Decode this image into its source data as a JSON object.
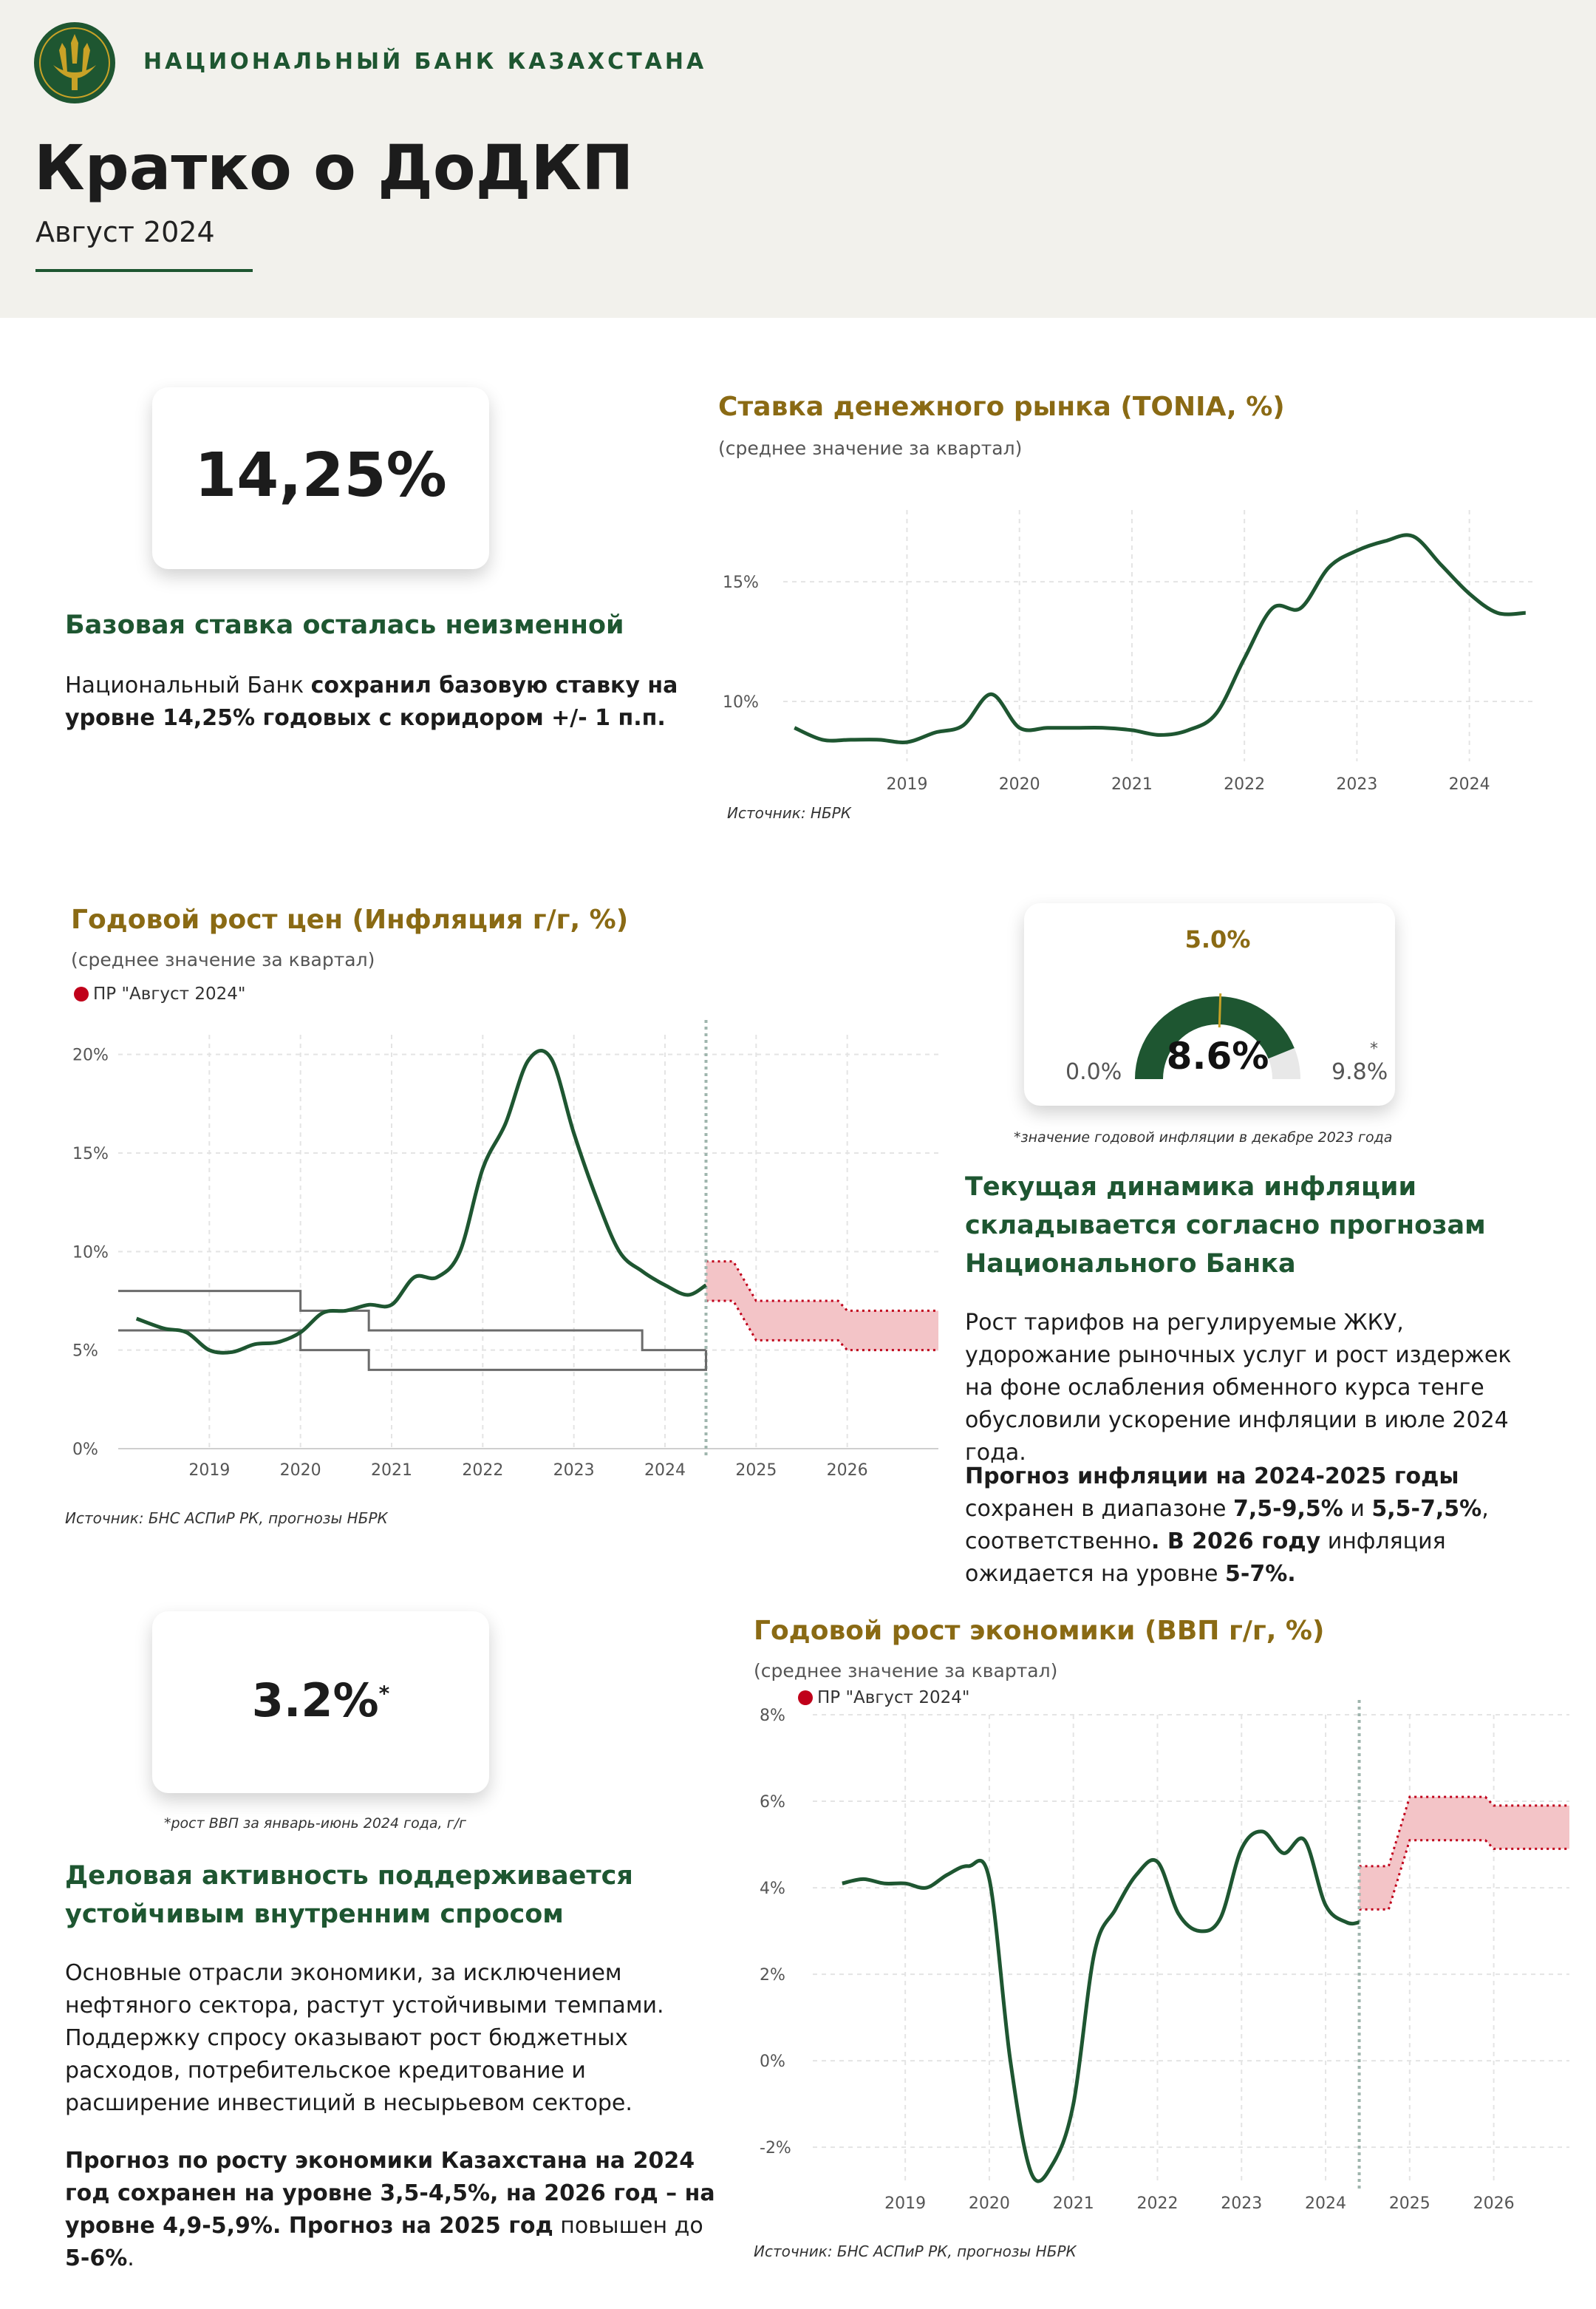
{
  "header": {
    "bank_name": "НАЦИОНАЛЬНЫЙ БАНК КАЗАХСТАНА",
    "title": "Кратко о ДоДКП",
    "subtitle": "Август 2024"
  },
  "rate_block": {
    "value": "14,25%",
    "heading": "Базовая ставка осталась неизменной",
    "text_1": "Национальный Банк ",
    "text_2": "сохранил базовую ставку на уровне 14,25% годовых с коридором +/- 1 п.п."
  },
  "inflation_block": {
    "gauge_target": "5.0%",
    "gauge_value": "8.6%",
    "gauge_min": "0.0%",
    "gauge_max": "9.8%",
    "gauge_star": "*",
    "gauge_note": "*значение годовой инфляции в декабре 2023 года",
    "heading": "Текущая динамика инфляции складывается согласно прогнозам Национального Банка",
    "para1": "Рост тарифов на регулируемые ЖКУ, удорожание рыночных услуг и рост издержек на фоне ослабления обменного курса тенге обусловили ускорение инфляции в июле 2024 года.",
    "para2_a": "Прогноз инфляции на 2024-2025 годы",
    "para2_b": " сохранен в диапазоне ",
    "para2_c": "7,5-9,5%",
    "para2_d": " и ",
    "para2_e": "5,5-7,5%",
    "para2_f": ", соответственно",
    "para2_g": ". В ",
    "para2_h": "2026 году",
    "para2_i": " инфляция ожидается на уровне ",
    "para2_j": "5-7%."
  },
  "gdp_block": {
    "value": "3.2%",
    "star": "*",
    "note": "*рост ВВП за январь-июнь 2024 года, г/г",
    "heading": "Деловая активность поддерживается устойчивым внутренним спросом",
    "para1": "Основные отрасли экономики, за исключением нефтяного сектора, растут устойчивыми темпами. Поддержку спросу оказывают рост бюджетных расходов, потребительское кредитование и расширение инвестиций в несырьевом секторе.",
    "para2_a": "Прогноз по росту экономики Казахстана на 2024 год сохранен на уровне 3,5-4,5%, на 2026 год – на уровне 4,9-5,9%. Прогноз на 2025 год",
    "para2_b": " повышен до ",
    "para2_c": "5-6%",
    "para2_d": "."
  },
  "colors": {
    "green": "#1e5631",
    "gold": "#8a6a14",
    "band": "#f3c4c7",
    "band_edge": "#c0001a"
  },
  "chart_data": [
    {
      "type": "line",
      "title": "Ставка денежного рынка (TONIA, %)",
      "subtitle": "(среднее значение за квартал)",
      "source": "Источник: НБРК",
      "x_ticks": [
        "2019",
        "2020",
        "2021",
        "2022",
        "2023",
        "2024"
      ],
      "y_ticks": [
        "10%",
        "15%"
      ],
      "ylim": [
        7.5,
        18
      ],
      "grid": true,
      "series": [
        {
          "x": [
            2018.0,
            2018.25,
            2018.5,
            2018.75,
            2019.0,
            2019.25,
            2019.5,
            2019.75,
            2020.0,
            2020.25,
            2020.5,
            2020.75,
            2021.0,
            2021.25,
            2021.5,
            2021.75,
            2022.0,
            2022.25,
            2022.5,
            2022.75,
            2023.0,
            2023.25,
            2023.5,
            2023.75,
            2024.0,
            2024.25,
            2024.5
          ],
          "y": [
            8.9,
            8.4,
            8.4,
            8.4,
            8.3,
            8.7,
            9.0,
            10.3,
            8.9,
            8.9,
            8.9,
            8.9,
            8.8,
            8.6,
            8.8,
            9.5,
            11.8,
            13.9,
            13.9,
            15.6,
            16.3,
            16.7,
            16.9,
            15.7,
            14.5,
            13.7,
            13.7
          ]
        }
      ]
    },
    {
      "type": "line",
      "title": "Годовой рост цен (Инфляция г/г, %)",
      "subtitle": "(среднее значение за квартал)",
      "legend": "ПР \"Август 2024\"",
      "source": "Источник: БНС АСПиР РК, прогнозы НБРК",
      "x_ticks": [
        "2019",
        "2020",
        "2021",
        "2022",
        "2023",
        "2024",
        "2025",
        "2026"
      ],
      "y_ticks": [
        "0%",
        "5%",
        "10%",
        "15%",
        "20%"
      ],
      "ylim": [
        0,
        21
      ],
      "grid": true,
      "series": [
        {
          "x": [
            2018.2,
            2018.5,
            2018.75,
            2019.0,
            2019.25,
            2019.5,
            2019.75,
            2020.0,
            2020.25,
            2020.5,
            2020.75,
            2021.0,
            2021.25,
            2021.5,
            2021.75,
            2022.0,
            2022.25,
            2022.5,
            2022.75,
            2023.0,
            2023.25,
            2023.5,
            2023.75,
            2024.0,
            2024.25,
            2024.45
          ],
          "y": [
            6.6,
            6.1,
            5.9,
            5.0,
            4.9,
            5.3,
            5.4,
            5.9,
            6.9,
            7.0,
            7.3,
            7.3,
            8.7,
            8.7,
            10.0,
            14.2,
            16.5,
            19.7,
            19.8,
            16.0,
            12.7,
            10.0,
            9.0,
            8.3,
            7.8,
            8.3
          ]
        }
      ],
      "target_corridor": {
        "x": [
          2018.0,
          2020.0,
          2020.75,
          2023.75,
          2024.45
        ],
        "upper": [
          8,
          7,
          6,
          5,
          5
        ],
        "lower": [
          6,
          5,
          4,
          4,
          5
        ]
      },
      "forecast_band": {
        "x": [
          2024.45,
          2024.75,
          2025.0,
          2025.9,
          2026.0,
          2027.0
        ],
        "upper": [
          9.5,
          9.5,
          7.5,
          7.5,
          7.0,
          7.0
        ],
        "lower": [
          7.5,
          7.5,
          5.5,
          5.5,
          5.0,
          5.0
        ]
      }
    },
    {
      "type": "line",
      "title": "Годовой рост экономики (ВВП г/г, %)",
      "subtitle": "(среднее значение за квартал)",
      "legend": "ПР \"Август 2024\"",
      "source": "Источник: БНС АСПиР РК, прогнозы НБРК",
      "x_ticks": [
        "2019",
        "2020",
        "2021",
        "2022",
        "2023",
        "2024",
        "2025",
        "2026"
      ],
      "y_ticks": [
        "-2%",
        "0%",
        "2%",
        "4%",
        "6%",
        "8%"
      ],
      "ylim": [
        -2.8,
        8
      ],
      "grid": true,
      "series": [
        {
          "x": [
            2018.25,
            2018.5,
            2018.75,
            2019.0,
            2019.25,
            2019.5,
            2019.75,
            2020.0,
            2020.25,
            2020.5,
            2020.75,
            2021.0,
            2021.25,
            2021.5,
            2021.75,
            2022.0,
            2022.25,
            2022.5,
            2022.75,
            2023.0,
            2023.25,
            2023.5,
            2023.75,
            2024.0,
            2024.25,
            2024.4
          ],
          "y": [
            4.1,
            4.2,
            4.1,
            4.1,
            4.0,
            4.3,
            4.5,
            4.2,
            0.0,
            -2.6,
            -2.4,
            -1.0,
            2.5,
            3.5,
            4.3,
            4.6,
            3.4,
            3.0,
            3.3,
            4.9,
            5.3,
            4.8,
            5.1,
            3.6,
            3.2,
            3.2
          ]
        }
      ],
      "forecast_band": {
        "x": [
          2024.4,
          2024.75,
          2025.0,
          2025.9,
          2026.0,
          2026.9
        ],
        "upper": [
          4.5,
          4.5,
          6.1,
          6.1,
          5.9,
          5.9
        ],
        "lower": [
          3.5,
          3.5,
          5.1,
          5.1,
          4.9,
          4.9
        ]
      }
    }
  ]
}
